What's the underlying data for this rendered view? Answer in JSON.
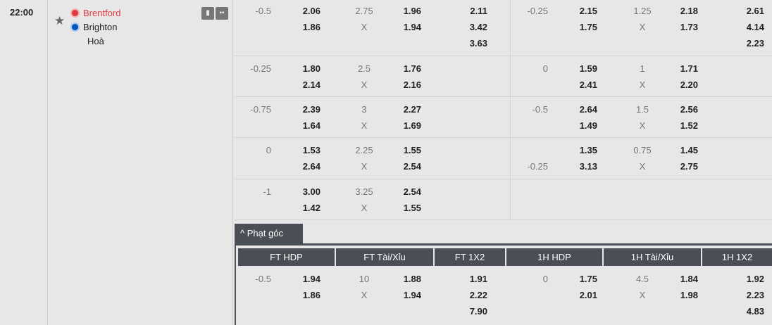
{
  "match": {
    "time": "22:00",
    "home": "Brentford",
    "away": "Brighton",
    "draw": "Hoà",
    "home_color": "#e03a3e",
    "away_color": "#0057b8"
  },
  "icons": {
    "favorite": "star-icon",
    "stats": "bar-chart-icon",
    "lineup": "hierarchy-icon"
  },
  "rows": [
    {
      "ft_hdp": {
        "line": "-0.5",
        "home": "2.06",
        "away": "1.86"
      },
      "ft_ou": {
        "line": "2.75",
        "x": "X",
        "over": "1.96",
        "under": "1.94"
      },
      "ft_1x2": [
        "2.11",
        "3.42",
        "3.63"
      ],
      "h1_hdp": {
        "line": "-0.25",
        "home": "2.15",
        "away": "1.75"
      },
      "h1_ou": {
        "line": "1.25",
        "x": "X",
        "over": "2.18",
        "under": "1.73"
      },
      "h1_1x2": [
        "2.61",
        "4.14",
        "2.23"
      ]
    },
    {
      "ft_hdp": {
        "line": "-0.25",
        "home": "1.80",
        "away": "2.14"
      },
      "ft_ou": {
        "line": "2.5",
        "x": "X",
        "over": "1.76",
        "under": "2.16"
      },
      "h1_hdp": {
        "line": "0",
        "home": "1.59",
        "away": "2.41"
      },
      "h1_ou": {
        "line": "1",
        "x": "X",
        "over": "1.71",
        "under": "2.20"
      }
    },
    {
      "ft_hdp": {
        "line": "-0.75",
        "home": "2.39",
        "away": "1.64"
      },
      "ft_ou": {
        "line": "3",
        "x": "X",
        "over": "2.27",
        "under": "1.69"
      },
      "h1_hdp": {
        "line": "-0.5",
        "home": "2.64",
        "away": "1.49"
      },
      "h1_ou": {
        "line": "1.5",
        "x": "X",
        "over": "2.56",
        "under": "1.52"
      }
    },
    {
      "ft_hdp": {
        "line": "0",
        "home": "1.53",
        "away": "2.64"
      },
      "ft_ou": {
        "line": "2.25",
        "x": "X",
        "over": "1.55",
        "under": "2.54"
      },
      "h1_hdp": {
        "away_line": "-0.25",
        "home": "1.35",
        "away": "3.13"
      },
      "h1_ou": {
        "line": "0.75",
        "x": "X",
        "over": "1.45",
        "under": "2.75"
      }
    },
    {
      "ft_hdp": {
        "line": "-1",
        "home": "3.00",
        "away": "1.42"
      },
      "ft_ou": {
        "line": "3.25",
        "x": "X",
        "over": "2.54",
        "under": "1.55"
      }
    }
  ],
  "corners": {
    "tab_label": "Phạt góc",
    "headers": [
      "FT HDP",
      "FT Tài/Xỉu",
      "FT 1X2",
      "1H HDP",
      "1H Tài/Xỉu",
      "1H 1X2"
    ],
    "row": {
      "ft_hdp": {
        "line": "-0.5",
        "home": "1.94",
        "away": "1.86"
      },
      "ft_ou": {
        "line": "10",
        "x": "X",
        "over": "1.88",
        "under": "1.94"
      },
      "ft_1x2": [
        "1.91",
        "2.22",
        "7.90"
      ],
      "h1_hdp": {
        "line": "0",
        "home": "1.75",
        "away": "2.01"
      },
      "h1_ou": {
        "line": "4.5",
        "x": "X",
        "over": "1.84",
        "under": "1.98"
      },
      "h1_1x2": [
        "1.92",
        "2.23",
        "4.83"
      ]
    }
  }
}
